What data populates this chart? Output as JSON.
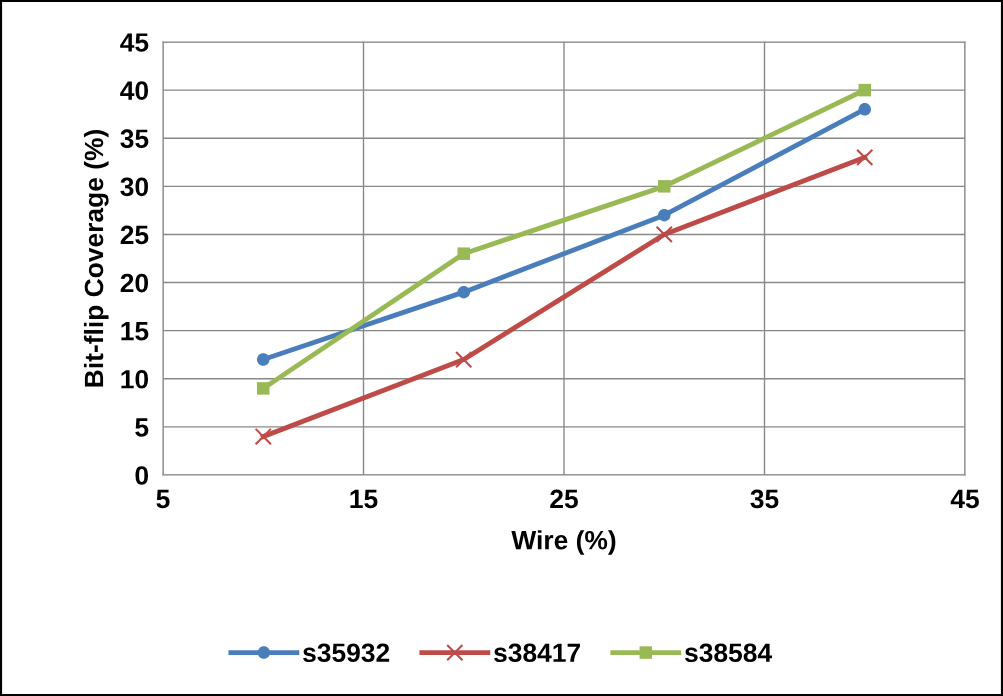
{
  "chart_data": {
    "type": "line",
    "xlabel": "Wire (%)",
    "ylabel": "Bit-flip Coverage (%)",
    "x": [
      10,
      20,
      30,
      40
    ],
    "series": [
      {
        "name": "s35932",
        "color": "#4a7ebb",
        "marker": "circle",
        "values": [
          12,
          19,
          27,
          38
        ]
      },
      {
        "name": "s38417",
        "color": "#be4b48",
        "marker": "cross",
        "values": [
          4,
          12,
          25,
          33
        ]
      },
      {
        "name": "s38584",
        "color": "#98b954",
        "marker": "square",
        "values": [
          9,
          23,
          30,
          40
        ]
      }
    ],
    "xlim": [
      5,
      45
    ],
    "xticks": [
      5,
      15,
      25,
      35,
      45
    ],
    "ylim": [
      0,
      45
    ],
    "yticks": [
      0,
      5,
      10,
      15,
      20,
      25,
      30,
      35,
      40,
      45
    ],
    "grid": true,
    "legend": "bottom",
    "line_style": "solid"
  }
}
